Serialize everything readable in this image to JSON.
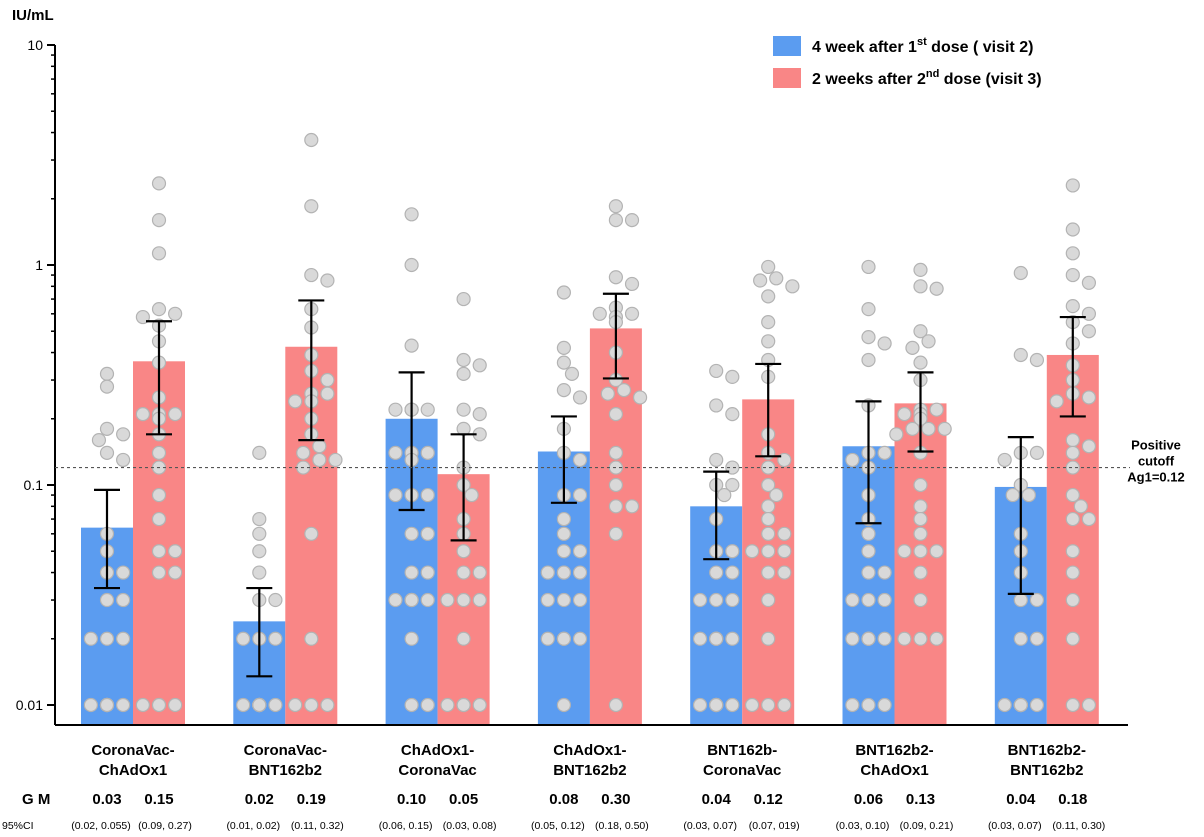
{
  "chart_data": {
    "type": "bar",
    "y_axis_label": "IU/mL",
    "y_scale": "log",
    "ylim": [
      0.01,
      10
    ],
    "y_ticks": [
      "10",
      "1",
      "0.1",
      "0.01"
    ],
    "y_tick_values": [
      10,
      1,
      0.1,
      0.01
    ],
    "categories": [
      [
        "CoronaVac-",
        "ChAdOx1"
      ],
      [
        "CoronaVac-",
        "BNT162b2"
      ],
      [
        "ChAdOx1-",
        "CoronaVac"
      ],
      [
        "ChAdOx1-",
        "BNT162b2"
      ],
      [
        "BNT162b-",
        "CoronaVac"
      ],
      [
        "BNT162b2-",
        "ChAdOx1"
      ],
      [
        "BNT162b2-",
        "BNT162b2"
      ]
    ],
    "series": [
      {
        "name": "4 week after 1st dose ( visit  2)",
        "legend_main": "4 week after 1",
        "legend_sup": "st",
        "legend_rest": " dose ( visit  2)",
        "color": "#5b9cf0",
        "values": [
          0.064,
          0.024,
          0.2,
          0.142,
          0.08,
          0.15,
          0.098
        ],
        "err_low": [
          0.034,
          0.0135,
          0.077,
          0.083,
          0.046,
          0.067,
          0.032
        ],
        "err_high": [
          0.095,
          0.034,
          0.325,
          0.205,
          0.115,
          0.24,
          0.165
        ],
        "points": [
          [
            0.32,
            0.28,
            0.18,
            0.17,
            0.16,
            0.14,
            0.13,
            0.06,
            0.05,
            0.04,
            0.04,
            0.03,
            0.03,
            0.02,
            0.02,
            0.02,
            0.01,
            0.01,
            0.01,
            0.01,
            0.01,
            0.01,
            0.01
          ],
          [
            0.14,
            0.07,
            0.06,
            0.05,
            0.04,
            0.03,
            0.03,
            0.02,
            0.02,
            0.02,
            0.01,
            0.01,
            0.01,
            0.01,
            0.01,
            0.01,
            0.01,
            0.01,
            0.01
          ],
          [
            1.7,
            1.0,
            0.43,
            0.22,
            0.22,
            0.22,
            0.22,
            0.22,
            0.14,
            0.14,
            0.14,
            0.13,
            0.09,
            0.09,
            0.09,
            0.06,
            0.06,
            0.04,
            0.04,
            0.03,
            0.03,
            0.03,
            0.03,
            0.03,
            0.02,
            0.01,
            0.01
          ],
          [
            0.75,
            0.42,
            0.36,
            0.32,
            0.27,
            0.25,
            0.18,
            0.14,
            0.13,
            0.09,
            0.09,
            0.07,
            0.06,
            0.05,
            0.05,
            0.04,
            0.04,
            0.04,
            0.04,
            0.03,
            0.03,
            0.03,
            0.02,
            0.02,
            0.02,
            0.02,
            0.01
          ],
          [
            0.33,
            0.31,
            0.23,
            0.21,
            0.13,
            0.12,
            0.1,
            0.1,
            0.09,
            0.07,
            0.05,
            0.05,
            0.04,
            0.04,
            0.03,
            0.03,
            0.03,
            0.02,
            0.02,
            0.02,
            0.02,
            0.02,
            0.01,
            0.01,
            0.01,
            0.01,
            0.01,
            0.01
          ],
          [
            0.98,
            0.63,
            0.47,
            0.44,
            0.37,
            0.23,
            0.14,
            0.14,
            0.13,
            0.12,
            0.09,
            0.07,
            0.06,
            0.05,
            0.04,
            0.04,
            0.03,
            0.03,
            0.03,
            0.02,
            0.02,
            0.02,
            0.02,
            0.02,
            0.01,
            0.01,
            0.01
          ],
          [
            0.92,
            0.39,
            0.37,
            0.14,
            0.14,
            0.13,
            0.1,
            0.09,
            0.09,
            0.06,
            0.05,
            0.04,
            0.03,
            0.03,
            0.02,
            0.02,
            0.01,
            0.01,
            0.01,
            0.01,
            0.01,
            0.01,
            0.01
          ]
        ]
      },
      {
        "name": "2 weeks after 2nd dose (visit 3)",
        "legend_main": "2 weeks after 2",
        "legend_sup": "nd",
        "legend_rest": " dose (visit 3)",
        "color": "#f98686",
        "values": [
          0.365,
          0.425,
          0.112,
          0.515,
          0.245,
          0.235,
          0.39
        ],
        "err_low": [
          0.17,
          0.16,
          0.056,
          0.305,
          0.135,
          0.142,
          0.205
        ],
        "err_high": [
          0.555,
          0.69,
          0.17,
          0.74,
          0.355,
          0.325,
          0.58
        ],
        "points": [
          [
            2.35,
            1.6,
            1.13,
            0.63,
            0.6,
            0.58,
            0.53,
            0.45,
            0.36,
            0.25,
            0.21,
            0.21,
            0.21,
            0.2,
            0.17,
            0.14,
            0.12,
            0.09,
            0.07,
            0.05,
            0.05,
            0.04,
            0.04,
            0.01,
            0.01,
            0.01,
            0.01
          ],
          [
            3.7,
            1.85,
            0.9,
            0.85,
            0.63,
            0.52,
            0.39,
            0.33,
            0.3,
            0.26,
            0.26,
            0.24,
            0.24,
            0.2,
            0.17,
            0.15,
            0.14,
            0.13,
            0.13,
            0.12,
            0.06,
            0.02,
            0.01,
            0.01,
            0.01
          ],
          [
            0.7,
            0.37,
            0.35,
            0.32,
            0.22,
            0.21,
            0.18,
            0.17,
            0.12,
            0.1,
            0.09,
            0.07,
            0.06,
            0.05,
            0.04,
            0.04,
            0.03,
            0.03,
            0.03,
            0.03,
            0.02,
            0.01,
            0.01,
            0.01,
            0.01,
            0.01
          ],
          [
            1.85,
            1.6,
            1.6,
            0.88,
            0.82,
            0.64,
            0.6,
            0.6,
            0.58,
            0.55,
            0.4,
            0.3,
            0.27,
            0.26,
            0.25,
            0.21,
            0.14,
            0.12,
            0.1,
            0.08,
            0.08,
            0.06,
            0.01
          ],
          [
            0.98,
            0.87,
            0.85,
            0.8,
            0.72,
            0.55,
            0.45,
            0.37,
            0.31,
            0.17,
            0.14,
            0.13,
            0.12,
            0.1,
            0.09,
            0.08,
            0.07,
            0.06,
            0.06,
            0.05,
            0.05,
            0.05,
            0.04,
            0.04,
            0.03,
            0.02,
            0.01,
            0.01,
            0.01
          ],
          [
            0.95,
            0.8,
            0.78,
            0.5,
            0.45,
            0.42,
            0.36,
            0.3,
            0.22,
            0.22,
            0.21,
            0.21,
            0.2,
            0.18,
            0.18,
            0.18,
            0.17,
            0.14,
            0.1,
            0.08,
            0.07,
            0.06,
            0.05,
            0.05,
            0.05,
            0.04,
            0.03,
            0.02,
            0.02,
            0.02
          ],
          [
            2.3,
            1.45,
            1.13,
            0.9,
            0.83,
            0.65,
            0.6,
            0.55,
            0.5,
            0.44,
            0.35,
            0.3,
            0.26,
            0.25,
            0.24,
            0.16,
            0.15,
            0.14,
            0.12,
            0.09,
            0.08,
            0.07,
            0.07,
            0.05,
            0.04,
            0.03,
            0.02,
            0.01,
            0.01
          ]
        ]
      }
    ],
    "cutoff": {
      "value": 0.12,
      "label_lines": [
        "Positive",
        "cutoff",
        "Ag1=0.12"
      ]
    },
    "gm": {
      "label": "G M",
      "values": [
        [
          "0.03",
          "0.15"
        ],
        [
          "0.02",
          "0.19"
        ],
        [
          "0.10",
          "0.05"
        ],
        [
          "0.08",
          "0.30"
        ],
        [
          "0.04",
          "0.12"
        ],
        [
          "0.06",
          "0.13"
        ],
        [
          "0.04",
          "0.18"
        ]
      ]
    },
    "ci": {
      "label": "95%CI",
      "values": [
        [
          "(0.02, 0.055)",
          "(0.09, 0.27)"
        ],
        [
          "(0.01, 0.02)",
          "(0.11, 0.32)"
        ],
        [
          "(0.06, 0.15)",
          "(0.03, 0.08)"
        ],
        [
          "(0.05, 0.12)",
          "(0.18, 0.50)"
        ],
        [
          "(0.03, 0.07)",
          "(0.07, 019)"
        ],
        [
          "(0.03, 0.10)",
          "(0.09, 0.21)"
        ],
        [
          "(0.03, 0.07)",
          "(0.11, 0.30)"
        ]
      ]
    },
    "legend_position": "top-right",
    "grid": false
  }
}
